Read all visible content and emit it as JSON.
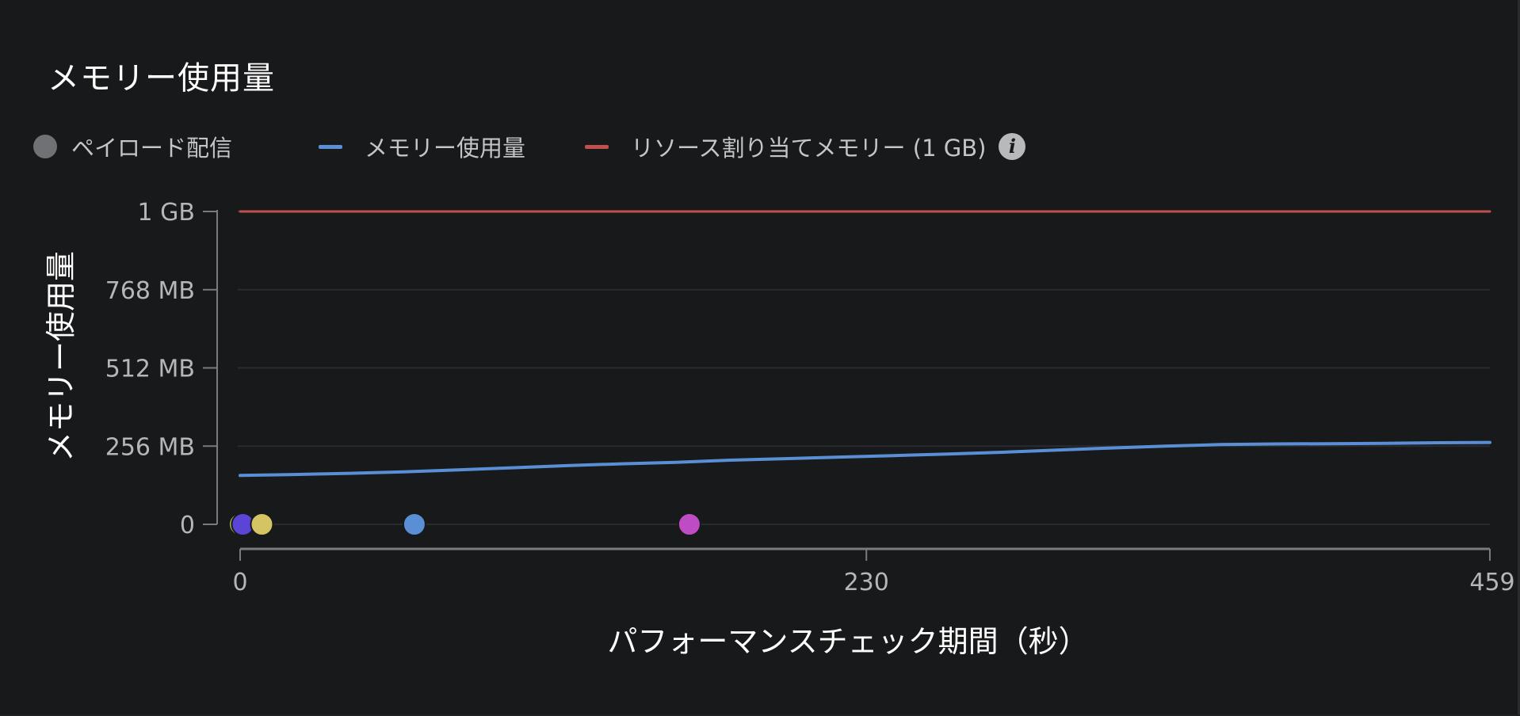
{
  "title": "メモリー使用量",
  "legend": {
    "payload": "ペイロード配信",
    "memory": "メモリー使用量",
    "allocated": "リソース割り当てメモリー (1 GB)",
    "info_icon": "info-icon"
  },
  "colors": {
    "memory_line": "#5a8fd6",
    "allocated_line": "#c0504d",
    "payload_legend": "#6f7174",
    "grid": "#2a2b2e",
    "axis": "#7a7b7e"
  },
  "chart_data": {
    "type": "line",
    "xlabel": "パフォーマンスチェック期間（秒）",
    "ylabel": "メモリー使用量",
    "xlim": [
      0,
      459
    ],
    "ylim": [
      0,
      1024
    ],
    "x_ticks": [
      {
        "value": 0,
        "label": "0"
      },
      {
        "value": 230,
        "label": "230"
      },
      {
        "value": 459,
        "label": "459"
      }
    ],
    "y_ticks": [
      {
        "value": 0,
        "label": "0"
      },
      {
        "value": 256,
        "label": "256 MB"
      },
      {
        "value": 512,
        "label": "512 MB"
      },
      {
        "value": 768,
        "label": "768 MB"
      },
      {
        "value": 1024,
        "label": "1 GB"
      }
    ],
    "grid": true,
    "legend_position": "top-left",
    "series": [
      {
        "name": "メモリー使用量",
        "color": "#5a8fd6",
        "x": [
          0,
          20,
          40,
          60,
          80,
          100,
          120,
          140,
          160,
          180,
          200,
          220,
          240,
          260,
          280,
          300,
          320,
          340,
          360,
          380,
          400,
          420,
          440,
          459
        ],
        "y": [
          160,
          163,
          167,
          172,
          178,
          185,
          192,
          198,
          203,
          210,
          215,
          220,
          225,
          230,
          236,
          243,
          250,
          256,
          261,
          263,
          264,
          265,
          267,
          268
        ]
      },
      {
        "name": "リソース割り当てメモリー (1 GB)",
        "color": "#c0504d",
        "x": [
          0,
          459
        ],
        "y": [
          1024,
          1024
        ]
      }
    ],
    "payload_events": [
      {
        "x": 0,
        "y": 0,
        "color": "#a9b84a"
      },
      {
        "x": 1,
        "y": 0,
        "color": "#5a45d6"
      },
      {
        "x": 8,
        "y": 0,
        "color": "#d4c464"
      },
      {
        "x": 64,
        "y": 0,
        "color": "#5a8fd6"
      },
      {
        "x": 165,
        "y": 0,
        "color": "#bf4cc4"
      }
    ]
  }
}
